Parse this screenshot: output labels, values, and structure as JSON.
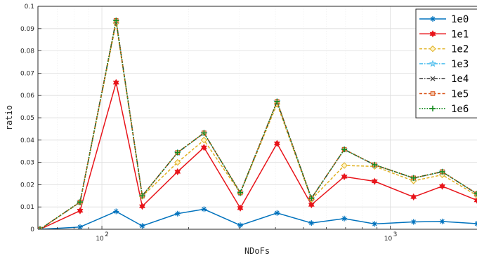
{
  "chart_data": {
    "type": "line",
    "xlabel": "NDoFs",
    "ylabel": "ratio",
    "xscale": "log",
    "xlim": [
      60,
      2000
    ],
    "ylim": [
      0,
      0.1
    ],
    "yticks": [
      {
        "value": 0,
        "label": "0"
      },
      {
        "value": 0.01,
        "label": "0.01"
      },
      {
        "value": 0.02,
        "label": "0.02"
      },
      {
        "value": 0.03,
        "label": "0.03"
      },
      {
        "value": 0.04,
        "label": "0.04"
      },
      {
        "value": 0.05,
        "label": "0.05"
      },
      {
        "value": 0.06,
        "label": "0.06"
      },
      {
        "value": 0.07,
        "label": "0.07"
      },
      {
        "value": 0.08,
        "label": "0.08"
      },
      {
        "value": 0.09,
        "label": "0.09"
      },
      {
        "value": 0.1,
        "label": "0.1"
      }
    ],
    "xticks": [
      {
        "value": 100,
        "base": "10",
        "exp": "2"
      },
      {
        "value": 1000,
        "base": "10",
        "exp": "3"
      }
    ],
    "grid": true,
    "legend_position": "top-right",
    "x": [
      61,
      84,
      112,
      138,
      183,
      226,
      302,
      405,
      533,
      693,
      883,
      1205,
      1515,
      2000
    ],
    "series": [
      {
        "name": "1e0",
        "color": "#0072bd",
        "marker": "asterisk",
        "dash": "solid",
        "values": [
          0,
          0.001,
          0.008,
          0.0015,
          0.007,
          0.009,
          0.0018,
          0.0073,
          0.0028,
          0.0048,
          0.0024,
          0.0033,
          0.0035,
          0.0025
        ]
      },
      {
        "name": "1e1",
        "color": "#e8141a",
        "marker": "hexagram",
        "dash": "solid",
        "values": [
          0,
          0.0083,
          0.0658,
          0.0103,
          0.0258,
          0.0367,
          0.0095,
          0.0385,
          0.011,
          0.0236,
          0.0215,
          0.0145,
          0.0193,
          0.013
        ]
      },
      {
        "name": "1e2",
        "color": "#e0b020",
        "marker": "diamond",
        "dash": "dash",
        "values": [
          0,
          0.0121,
          0.0925,
          0.0148,
          0.03,
          0.04,
          0.0162,
          0.0562,
          0.0134,
          0.0286,
          0.0282,
          0.0217,
          0.0244,
          0.0151
        ]
      },
      {
        "name": "1e3",
        "color": "#4dbeee",
        "marker": "star",
        "dash": "dashdot",
        "values": [
          0,
          0.0122,
          0.0935,
          0.015,
          0.0343,
          0.0431,
          0.0163,
          0.0572,
          0.0138,
          0.0357,
          0.0288,
          0.0229,
          0.0257,
          0.0158
        ]
      },
      {
        "name": "1e4",
        "color": "#333333",
        "marker": "x",
        "dash": "dashdot",
        "values": [
          0,
          0.0122,
          0.0936,
          0.015,
          0.0344,
          0.0432,
          0.0164,
          0.0573,
          0.0139,
          0.0358,
          0.0289,
          0.023,
          0.0258,
          0.0159
        ]
      },
      {
        "name": "1e5",
        "color": "#d95319",
        "marker": "square",
        "dash": "dash",
        "values": [
          0,
          0.0122,
          0.0936,
          0.015,
          0.0344,
          0.0432,
          0.0164,
          0.0573,
          0.0139,
          0.0358,
          0.0289,
          0.023,
          0.0258,
          0.0159
        ]
      },
      {
        "name": "1e6",
        "color": "#168a1f",
        "marker": "plus",
        "dash": "dot",
        "values": [
          0,
          0.0122,
          0.0936,
          0.015,
          0.0344,
          0.0432,
          0.0164,
          0.0573,
          0.0139,
          0.0358,
          0.0289,
          0.023,
          0.0258,
          0.0159
        ]
      }
    ]
  }
}
